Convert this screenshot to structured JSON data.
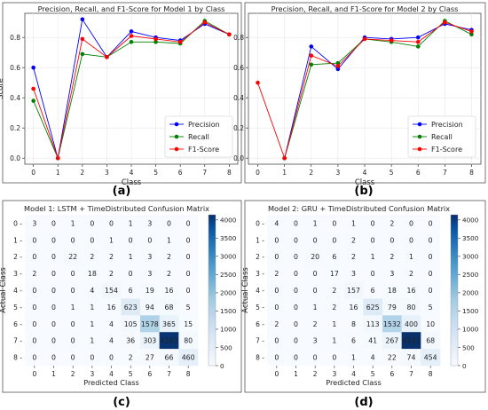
{
  "panel_labels": [
    "(a)",
    "(b)",
    "(c)",
    "(d)"
  ],
  "chart_data": [
    {
      "type": "line",
      "title": "Precision, Recall, and F1-Score for Model 1 by Class",
      "xlabel": "Class",
      "ylabel": "Score",
      "x": [
        0,
        1,
        2,
        3,
        4,
        5,
        6,
        7,
        8
      ],
      "yticks": [
        0.0,
        0.2,
        0.4,
        0.6,
        0.8
      ],
      "ylim": [
        -0.04,
        0.96
      ],
      "grid": true,
      "legend_position": "lower-right",
      "series": [
        {
          "name": "Precision",
          "color": "#0000ff",
          "values": [
            0.6,
            0.0,
            0.92,
            0.67,
            0.84,
            0.8,
            0.78,
            0.89,
            0.82
          ]
        },
        {
          "name": "Recall",
          "color": "#008000",
          "values": [
            0.38,
            0.0,
            0.69,
            0.67,
            0.77,
            0.77,
            0.76,
            0.91,
            0.82
          ]
        },
        {
          "name": "F1-Score",
          "color": "#ff0000",
          "values": [
            0.46,
            0.0,
            0.79,
            0.67,
            0.81,
            0.79,
            0.77,
            0.9,
            0.82
          ]
        }
      ]
    },
    {
      "type": "line",
      "title": "Precision, Recall, and F1-Score for Model 2 by Class",
      "xlabel": "Class",
      "ylabel": "",
      "x": [
        0,
        1,
        2,
        3,
        4,
        5,
        6,
        7,
        8
      ],
      "yticks": [
        0.0,
        0.2,
        0.4,
        0.6,
        0.8
      ],
      "ylim": [
        -0.04,
        0.96
      ],
      "grid": true,
      "legend_position": "lower-right",
      "series": [
        {
          "name": "Precision",
          "color": "#0000ff",
          "values": [
            null,
            0.0,
            0.74,
            0.59,
            0.8,
            0.79,
            0.8,
            0.89,
            0.85
          ]
        },
        {
          "name": "Recall",
          "color": "#008000",
          "values": [
            null,
            0.0,
            0.62,
            0.63,
            0.79,
            0.77,
            0.74,
            0.91,
            0.82
          ]
        },
        {
          "name": "F1-Score",
          "color": "#ff0000",
          "values": [
            0.5,
            0.0,
            0.68,
            0.61,
            0.79,
            0.78,
            0.77,
            0.9,
            0.84
          ]
        }
      ]
    },
    {
      "type": "heatmap",
      "title": "Model 1: LSTM + TimeDistributed Confusion Matrix",
      "xlabel": "Predicted Class",
      "ylabel": "Actual Class",
      "x_categories": [
        "0",
        "1",
        "2",
        "3",
        "4",
        "5",
        "6",
        "7",
        "8"
      ],
      "y_categories": [
        "0",
        "1",
        "2",
        "3",
        "4",
        "5",
        "6",
        "7",
        "8"
      ],
      "colorbar_ticks": [
        0,
        500,
        1000,
        1500,
        2000,
        2500,
        3000,
        3500,
        4000
      ],
      "colorbar_range": [
        0,
        4141
      ],
      "matrix": [
        [
          3,
          0,
          1,
          0,
          0,
          1,
          3,
          0,
          0
        ],
        [
          0,
          0,
          0,
          0,
          1,
          0,
          0,
          1,
          0
        ],
        [
          0,
          0,
          22,
          2,
          2,
          1,
          3,
          2,
          0
        ],
        [
          2,
          0,
          0,
          18,
          2,
          0,
          3,
          2,
          0
        ],
        [
          0,
          0,
          0,
          4,
          154,
          6,
          19,
          16,
          0
        ],
        [
          0,
          0,
          1,
          1,
          16,
          623,
          94,
          68,
          5
        ],
        [
          0,
          0,
          0,
          1,
          4,
          105,
          1578,
          365,
          15
        ],
        [
          0,
          0,
          0,
          1,
          4,
          36,
          303,
          4103,
          80
        ],
        [
          0,
          0,
          0,
          0,
          0,
          2,
          27,
          66,
          460
        ]
      ]
    },
    {
      "type": "heatmap",
      "title": "Model 2: GRU + TimeDistributed Confusion Matrix",
      "xlabel": "Predicted Class",
      "ylabel": "Actual Class",
      "x_categories": [
        "0",
        "1",
        "2",
        "3",
        "4",
        "5",
        "6",
        "7",
        "8"
      ],
      "y_categories": [
        "0",
        "1",
        "2",
        "3",
        "4",
        "5",
        "6",
        "7",
        "8"
      ],
      "colorbar_ticks": [
        0,
        500,
        1000,
        1500,
        2000,
        2500,
        3000,
        3500,
        4000
      ],
      "colorbar_range": [
        0,
        4141
      ],
      "matrix": [
        [
          4,
          0,
          1,
          0,
          1,
          0,
          2,
          0,
          0
        ],
        [
          0,
          0,
          0,
          0,
          2,
          0,
          0,
          0,
          0
        ],
        [
          0,
          0,
          20,
          6,
          2,
          1,
          2,
          1,
          0
        ],
        [
          2,
          0,
          0,
          17,
          3,
          0,
          3,
          2,
          0
        ],
        [
          0,
          0,
          0,
          2,
          157,
          6,
          18,
          16,
          0
        ],
        [
          0,
          0,
          1,
          2,
          16,
          625,
          79,
          80,
          5
        ],
        [
          2,
          0,
          2,
          1,
          8,
          113,
          1532,
          400,
          10
        ],
        [
          0,
          0,
          3,
          1,
          6,
          41,
          267,
          4141,
          68
        ],
        [
          0,
          0,
          0,
          0,
          1,
          4,
          22,
          74,
          454
        ]
      ]
    }
  ]
}
